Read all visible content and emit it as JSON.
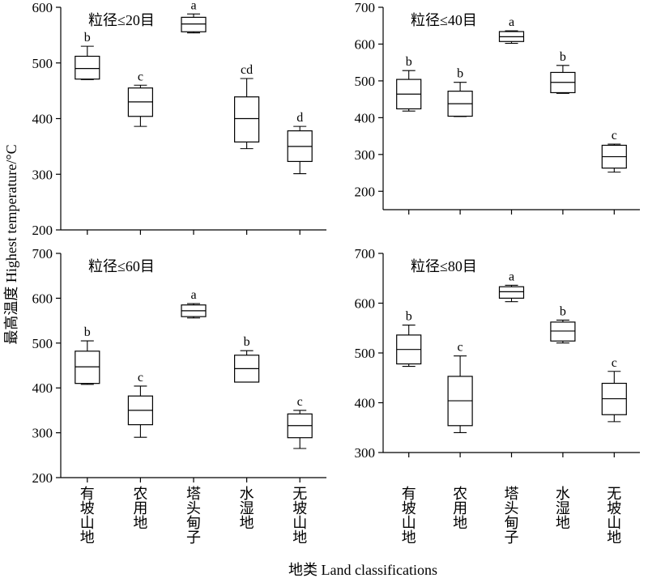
{
  "figure": {
    "ylabel": "最高温度 Highest temperature/°C",
    "xlabel": "地类 Land classifications",
    "categories": [
      "有坡山地",
      "农用地",
      "塔头甸子",
      "水湿地",
      "无坡山地"
    ]
  },
  "chart_data": [
    {
      "type": "box",
      "title": "粒径≤20目",
      "ylim": [
        200,
        600
      ],
      "yticks": [
        200,
        300,
        400,
        500,
        600
      ],
      "categories": [
        "有坡山地",
        "农用地",
        "塔头甸子",
        "水湿地",
        "无坡山地"
      ],
      "boxes": [
        {
          "min": 470,
          "q1": 471,
          "median": 490,
          "q3": 512,
          "max": 530,
          "label": "b"
        },
        {
          "min": 386,
          "q1": 404,
          "median": 430,
          "q3": 455,
          "max": 460,
          "label": "c"
        },
        {
          "min": 554,
          "q1": 556,
          "median": 570,
          "q3": 582,
          "max": 588,
          "label": "a"
        },
        {
          "min": 346,
          "q1": 358,
          "median": 400,
          "q3": 439,
          "max": 472,
          "label": "cd"
        },
        {
          "min": 301,
          "q1": 323,
          "median": 350,
          "q3": 378,
          "max": 386,
          "label": "d"
        }
      ]
    },
    {
      "type": "box",
      "title": "粒径≤40目",
      "ylim": [
        150,
        700
      ],
      "yticks": [
        200,
        300,
        400,
        500,
        600,
        700
      ],
      "categories": [
        "有坡山地",
        "农用地",
        "塔头甸子",
        "水湿地",
        "无坡山地"
      ],
      "boxes": [
        {
          "min": 418,
          "q1": 424,
          "median": 464,
          "q3": 504,
          "max": 528,
          "label": "b"
        },
        {
          "min": 403,
          "q1": 404,
          "median": 438,
          "q3": 472,
          "max": 496,
          "label": "b"
        },
        {
          "min": 602,
          "q1": 607,
          "median": 620,
          "q3": 634,
          "max": 636,
          "label": "a"
        },
        {
          "min": 466,
          "q1": 468,
          "median": 496,
          "q3": 523,
          "max": 542,
          "label": "b"
        },
        {
          "min": 252,
          "q1": 263,
          "median": 294,
          "q3": 325,
          "max": 328,
          "label": "c"
        }
      ]
    },
    {
      "type": "box",
      "title": "粒径≤60目",
      "ylim": [
        200,
        700
      ],
      "yticks": [
        200,
        300,
        400,
        500,
        600,
        700
      ],
      "categories": [
        "有坡山地",
        "农用地",
        "塔头甸子",
        "水湿地",
        "无坡山地"
      ],
      "boxes": [
        {
          "min": 408,
          "q1": 410,
          "median": 447,
          "q3": 482,
          "max": 505,
          "label": "b"
        },
        {
          "min": 290,
          "q1": 318,
          "median": 350,
          "q3": 382,
          "max": 404,
          "label": "c"
        },
        {
          "min": 556,
          "q1": 559,
          "median": 572,
          "q3": 585,
          "max": 588,
          "label": "a"
        },
        {
          "min": 413,
          "q1": 413,
          "median": 443,
          "q3": 473,
          "max": 483,
          "label": "b"
        },
        {
          "min": 265,
          "q1": 289,
          "median": 316,
          "q3": 342,
          "max": 350,
          "label": "c"
        }
      ]
    },
    {
      "type": "box",
      "title": "粒径≤80目",
      "ylim": [
        300,
        700
      ],
      "yticks": [
        300,
        400,
        500,
        600,
        700
      ],
      "categories": [
        "有坡山地",
        "农用地",
        "塔头甸子",
        "水湿地",
        "无坡山地"
      ],
      "boxes": [
        {
          "min": 473,
          "q1": 478,
          "median": 507,
          "q3": 536,
          "max": 556,
          "label": "b"
        },
        {
          "min": 340,
          "q1": 354,
          "median": 404,
          "q3": 453,
          "max": 494,
          "label": "c"
        },
        {
          "min": 603,
          "q1": 610,
          "median": 623,
          "q3": 633,
          "max": 636,
          "label": "a"
        },
        {
          "min": 520,
          "q1": 524,
          "median": 544,
          "q3": 562,
          "max": 566,
          "label": "b"
        },
        {
          "min": 362,
          "q1": 376,
          "median": 408,
          "q3": 439,
          "max": 463,
          "label": "c"
        }
      ]
    }
  ]
}
